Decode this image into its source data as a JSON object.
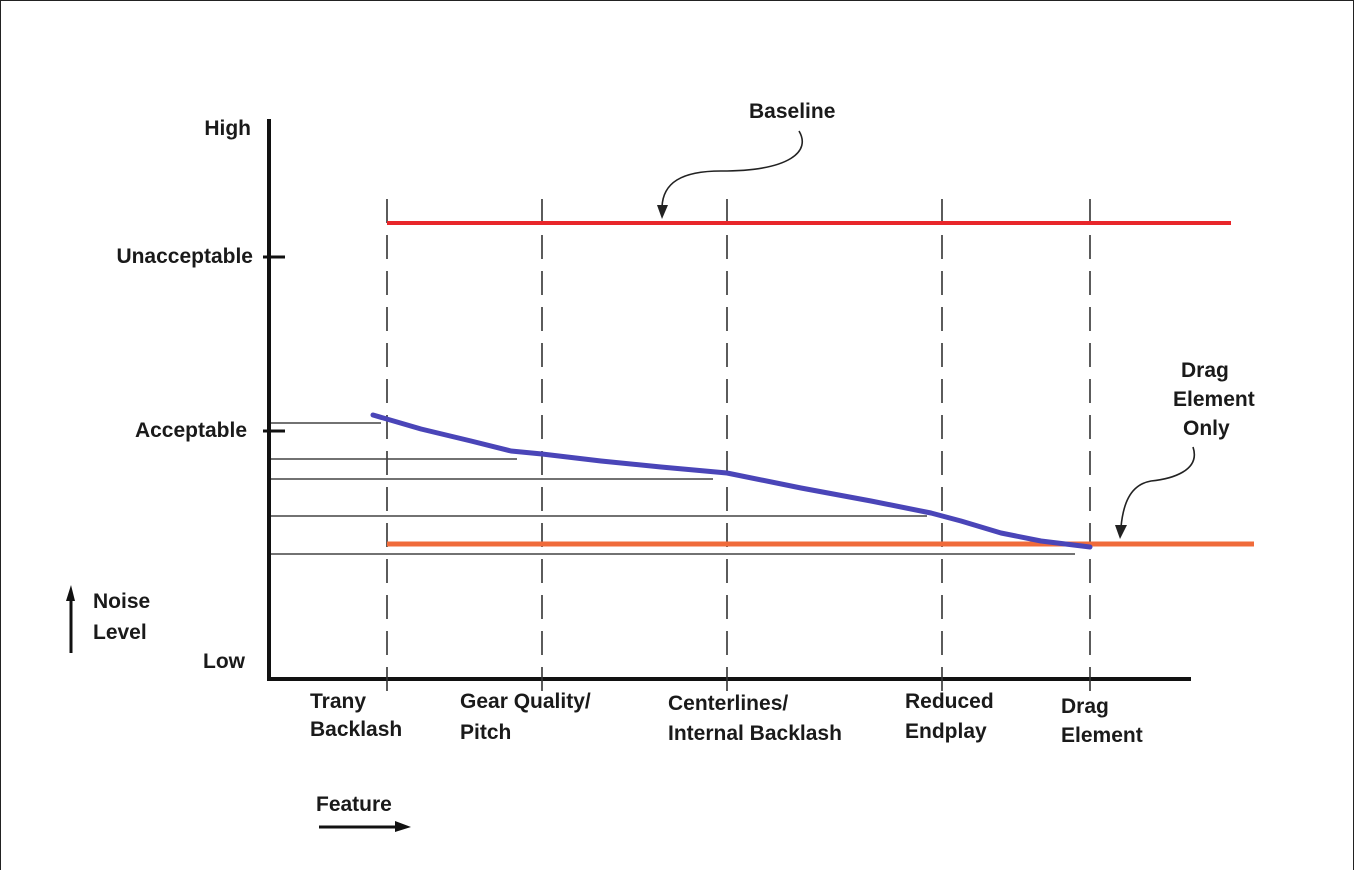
{
  "y_axis": {
    "labels": {
      "high": "High",
      "unacceptable": "Unacceptable",
      "acceptable": "Acceptable",
      "low": "Low"
    },
    "title_lines": [
      "Noise",
      "Level"
    ]
  },
  "x_axis": {
    "title": "Feature",
    "features": [
      {
        "lines": [
          "Trany",
          "Backlash"
        ]
      },
      {
        "lines": [
          "Gear Quality/",
          "Pitch"
        ]
      },
      {
        "lines": [
          "Centerlines/",
          "Internal Backlash"
        ]
      },
      {
        "lines": [
          "Reduced",
          "Endplay"
        ]
      },
      {
        "lines": [
          "Drag",
          "Element"
        ]
      }
    ]
  },
  "annotations": {
    "baseline": "Baseline",
    "drag_only_lines": [
      "Drag",
      "Element",
      "Only"
    ]
  },
  "colors": {
    "baseline_line": "#e8262a",
    "drag_only_line": "#f06b3a",
    "noise_curve": "#4a45b8",
    "axes": "#111111"
  }
}
